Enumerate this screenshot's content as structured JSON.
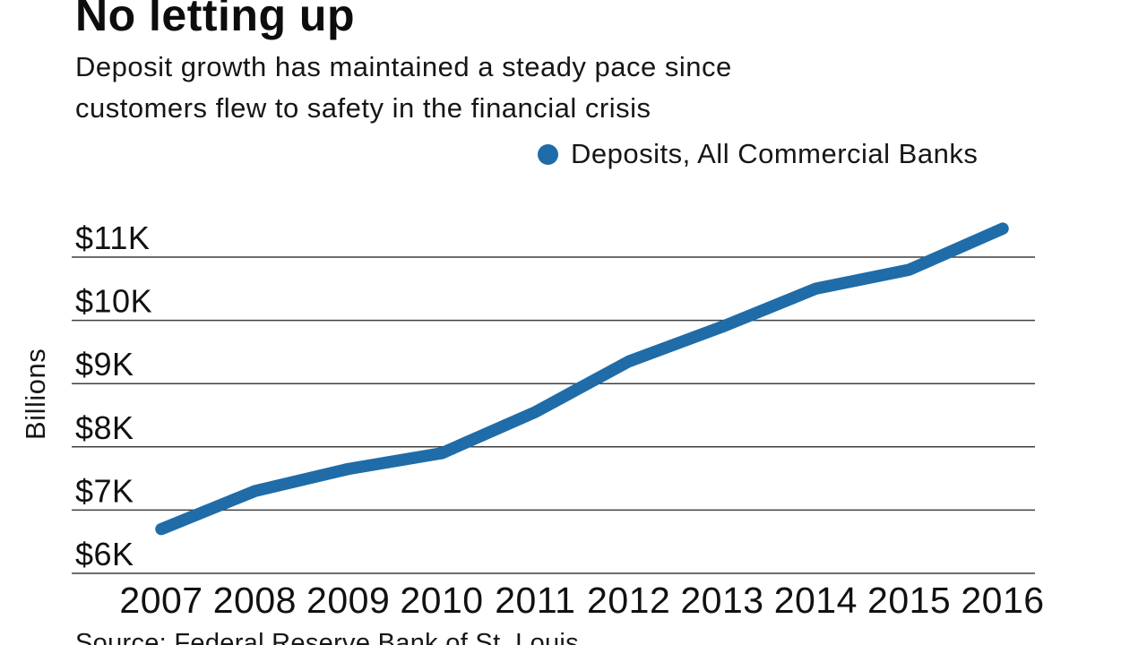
{
  "header": {
    "title": "No letting up",
    "subtitle_line1": "Deposit growth has maintained a steady pace since",
    "subtitle_line2": "customers flew to safety in the financial crisis"
  },
  "legend": {
    "label": "Deposits, All Commercial Banks"
  },
  "axis": {
    "y_label": "Billions"
  },
  "footer": {
    "source": "Source: Federal Reserve Bank of St. Louis"
  },
  "colors": {
    "line": "#1f6ca8",
    "grid": "#3f3f3f",
    "text": "#111111",
    "background": "#ffffff"
  },
  "chart_data": {
    "type": "line",
    "title": "No letting up",
    "subtitle": "Deposit growth has maintained a steady pace since customers flew to safety in the financial crisis",
    "categories": [
      "2007",
      "2008",
      "2009",
      "2010",
      "2011",
      "2012",
      "2013",
      "2014",
      "2015",
      "2016"
    ],
    "series": [
      {
        "name": "Deposits, All Commercial Banks",
        "color": "#1f6ca8",
        "values": [
          6.7,
          7.3,
          7.65,
          7.9,
          8.55,
          9.35,
          9.9,
          10.5,
          10.8,
          11.45
        ]
      }
    ],
    "y_ticks": [
      {
        "label": "$6K",
        "value": 6
      },
      {
        "label": "$7K",
        "value": 7
      },
      {
        "label": "$8K",
        "value": 8
      },
      {
        "label": "$9K",
        "value": 9
      },
      {
        "label": "$10K",
        "value": 10
      },
      {
        "label": "$11K",
        "value": 11
      }
    ],
    "xlabel": "",
    "ylabel": "Billions",
    "unit": "thousands of billions of dollars ($K)",
    "ylim": [
      6,
      11.5
    ],
    "grid": "horizontal",
    "legend_position": "top-right",
    "source": "Source: Federal Reserve Bank of St. Louis"
  }
}
